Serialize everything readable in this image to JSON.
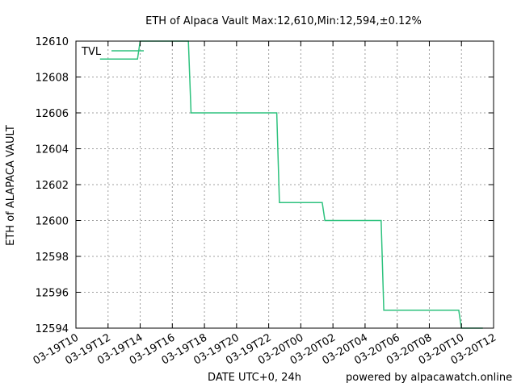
{
  "chart_data": {
    "type": "line",
    "title": "ETH of Alpaca Vault Max:12,610,Min:12,594,±0.12%",
    "xlabel": "DATE UTC+0, 24h",
    "ylabel": "ETH of ALAPACA VAULT",
    "footer": "powered by alpacawatch.online",
    "grid": true,
    "legend_position": "top-left",
    "xlim": [
      "03-19T10",
      "03-20T12"
    ],
    "ylim": [
      12594,
      12610
    ],
    "x_ticks": [
      "03-19T10",
      "03-19T12",
      "03-19T14",
      "03-19T16",
      "03-19T18",
      "03-19T20",
      "03-19T22",
      "03-20T00",
      "03-20T02",
      "03-20T04",
      "03-20T06",
      "03-20T08",
      "03-20T10",
      "03-20T12"
    ],
    "y_ticks": [
      "12594",
      "12596",
      "12598",
      "12600",
      "12602",
      "12604",
      "12606",
      "12608",
      "12610"
    ],
    "series": [
      {
        "name": "TVL",
        "color": "#2ec27e",
        "x": [
          "03-19T11:30",
          "03-19T13:50",
          "03-19T14:00",
          "03-19T17:00",
          "03-19T17:10",
          "03-19T22:30",
          "03-19T22:40",
          "03-20T01:20",
          "03-20T01:30",
          "03-20T05:00",
          "03-20T05:10",
          "03-20T09:50",
          "03-20T10:00",
          "03-20T11:20"
        ],
        "y": [
          12609,
          12609,
          12610,
          12610,
          12606,
          12606,
          12601,
          12601,
          12600,
          12600,
          12595,
          12595,
          12594,
          12594
        ]
      }
    ]
  }
}
